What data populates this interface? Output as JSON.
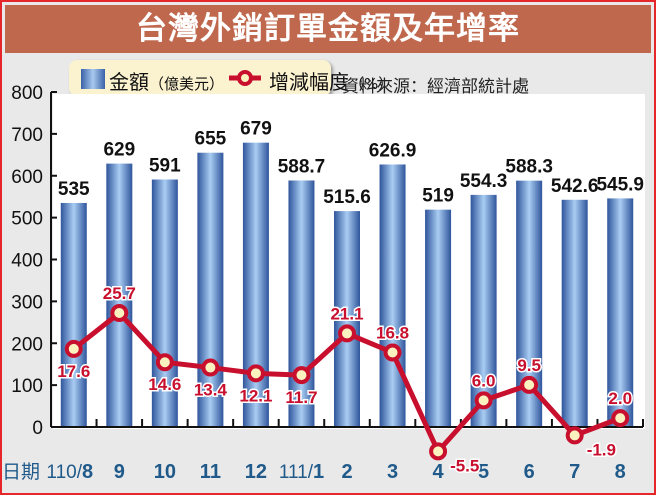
{
  "title": "台灣外銷訂單金額及年增率",
  "legend": {
    "bar_label": "金額",
    "bar_unit": "（億美元）",
    "line_label": "增減幅度",
    "line_unit": "（%）"
  },
  "source": "資料來源：經濟部統計處",
  "x_axis_prefix": "日期",
  "colors": {
    "title_bg": "#c0684e",
    "frame_border": "#e5262b",
    "bar": "#3a62a8",
    "line": "#c8102e",
    "marker_fill": "#fbf2c0",
    "x_label": "#1f5a8a",
    "legend_bg": "#fbf2d0"
  },
  "chart_data": {
    "type": "bar+line",
    "title": "台灣外銷訂單金額及年增率",
    "categories": [
      "110/8",
      "9",
      "10",
      "11",
      "12",
      "111/1",
      "2",
      "3",
      "4",
      "5",
      "6",
      "7",
      "8"
    ],
    "series": [
      {
        "name": "金額（億美元）",
        "type": "bar",
        "values": [
          535,
          629,
          591,
          655,
          679,
          588.7,
          515.6,
          626.9,
          519,
          554.3,
          588.3,
          542.6,
          545.9
        ],
        "labels": [
          "535",
          "629",
          "591",
          "655",
          "679",
          "588.7",
          "515.6",
          "626.9",
          "519",
          "554.3",
          "588.3",
          "542.6",
          "545.9"
        ]
      },
      {
        "name": "增減幅度（%）",
        "type": "line",
        "values": [
          17.6,
          25.7,
          14.6,
          13.4,
          12.1,
          11.7,
          21.1,
          16.8,
          -5.5,
          6.0,
          9.5,
          -1.9,
          2.0
        ],
        "labels": [
          "17.6",
          "25.7",
          "14.6",
          "13.4",
          "12.1",
          "11.7",
          "21.1",
          "16.8",
          "-5.5",
          "6.0",
          "9.5",
          "-1.9",
          "2.0"
        ]
      }
    ],
    "y_ticks": [
      "0",
      "100",
      "200",
      "300",
      "400",
      "500",
      "600",
      "700",
      "800"
    ],
    "ylim": [
      0,
      800
    ],
    "xlabel": "日期",
    "ylabel": "",
    "grid": false,
    "legend_position": "top-left",
    "annotation": "資料來源：經濟部統計處"
  }
}
